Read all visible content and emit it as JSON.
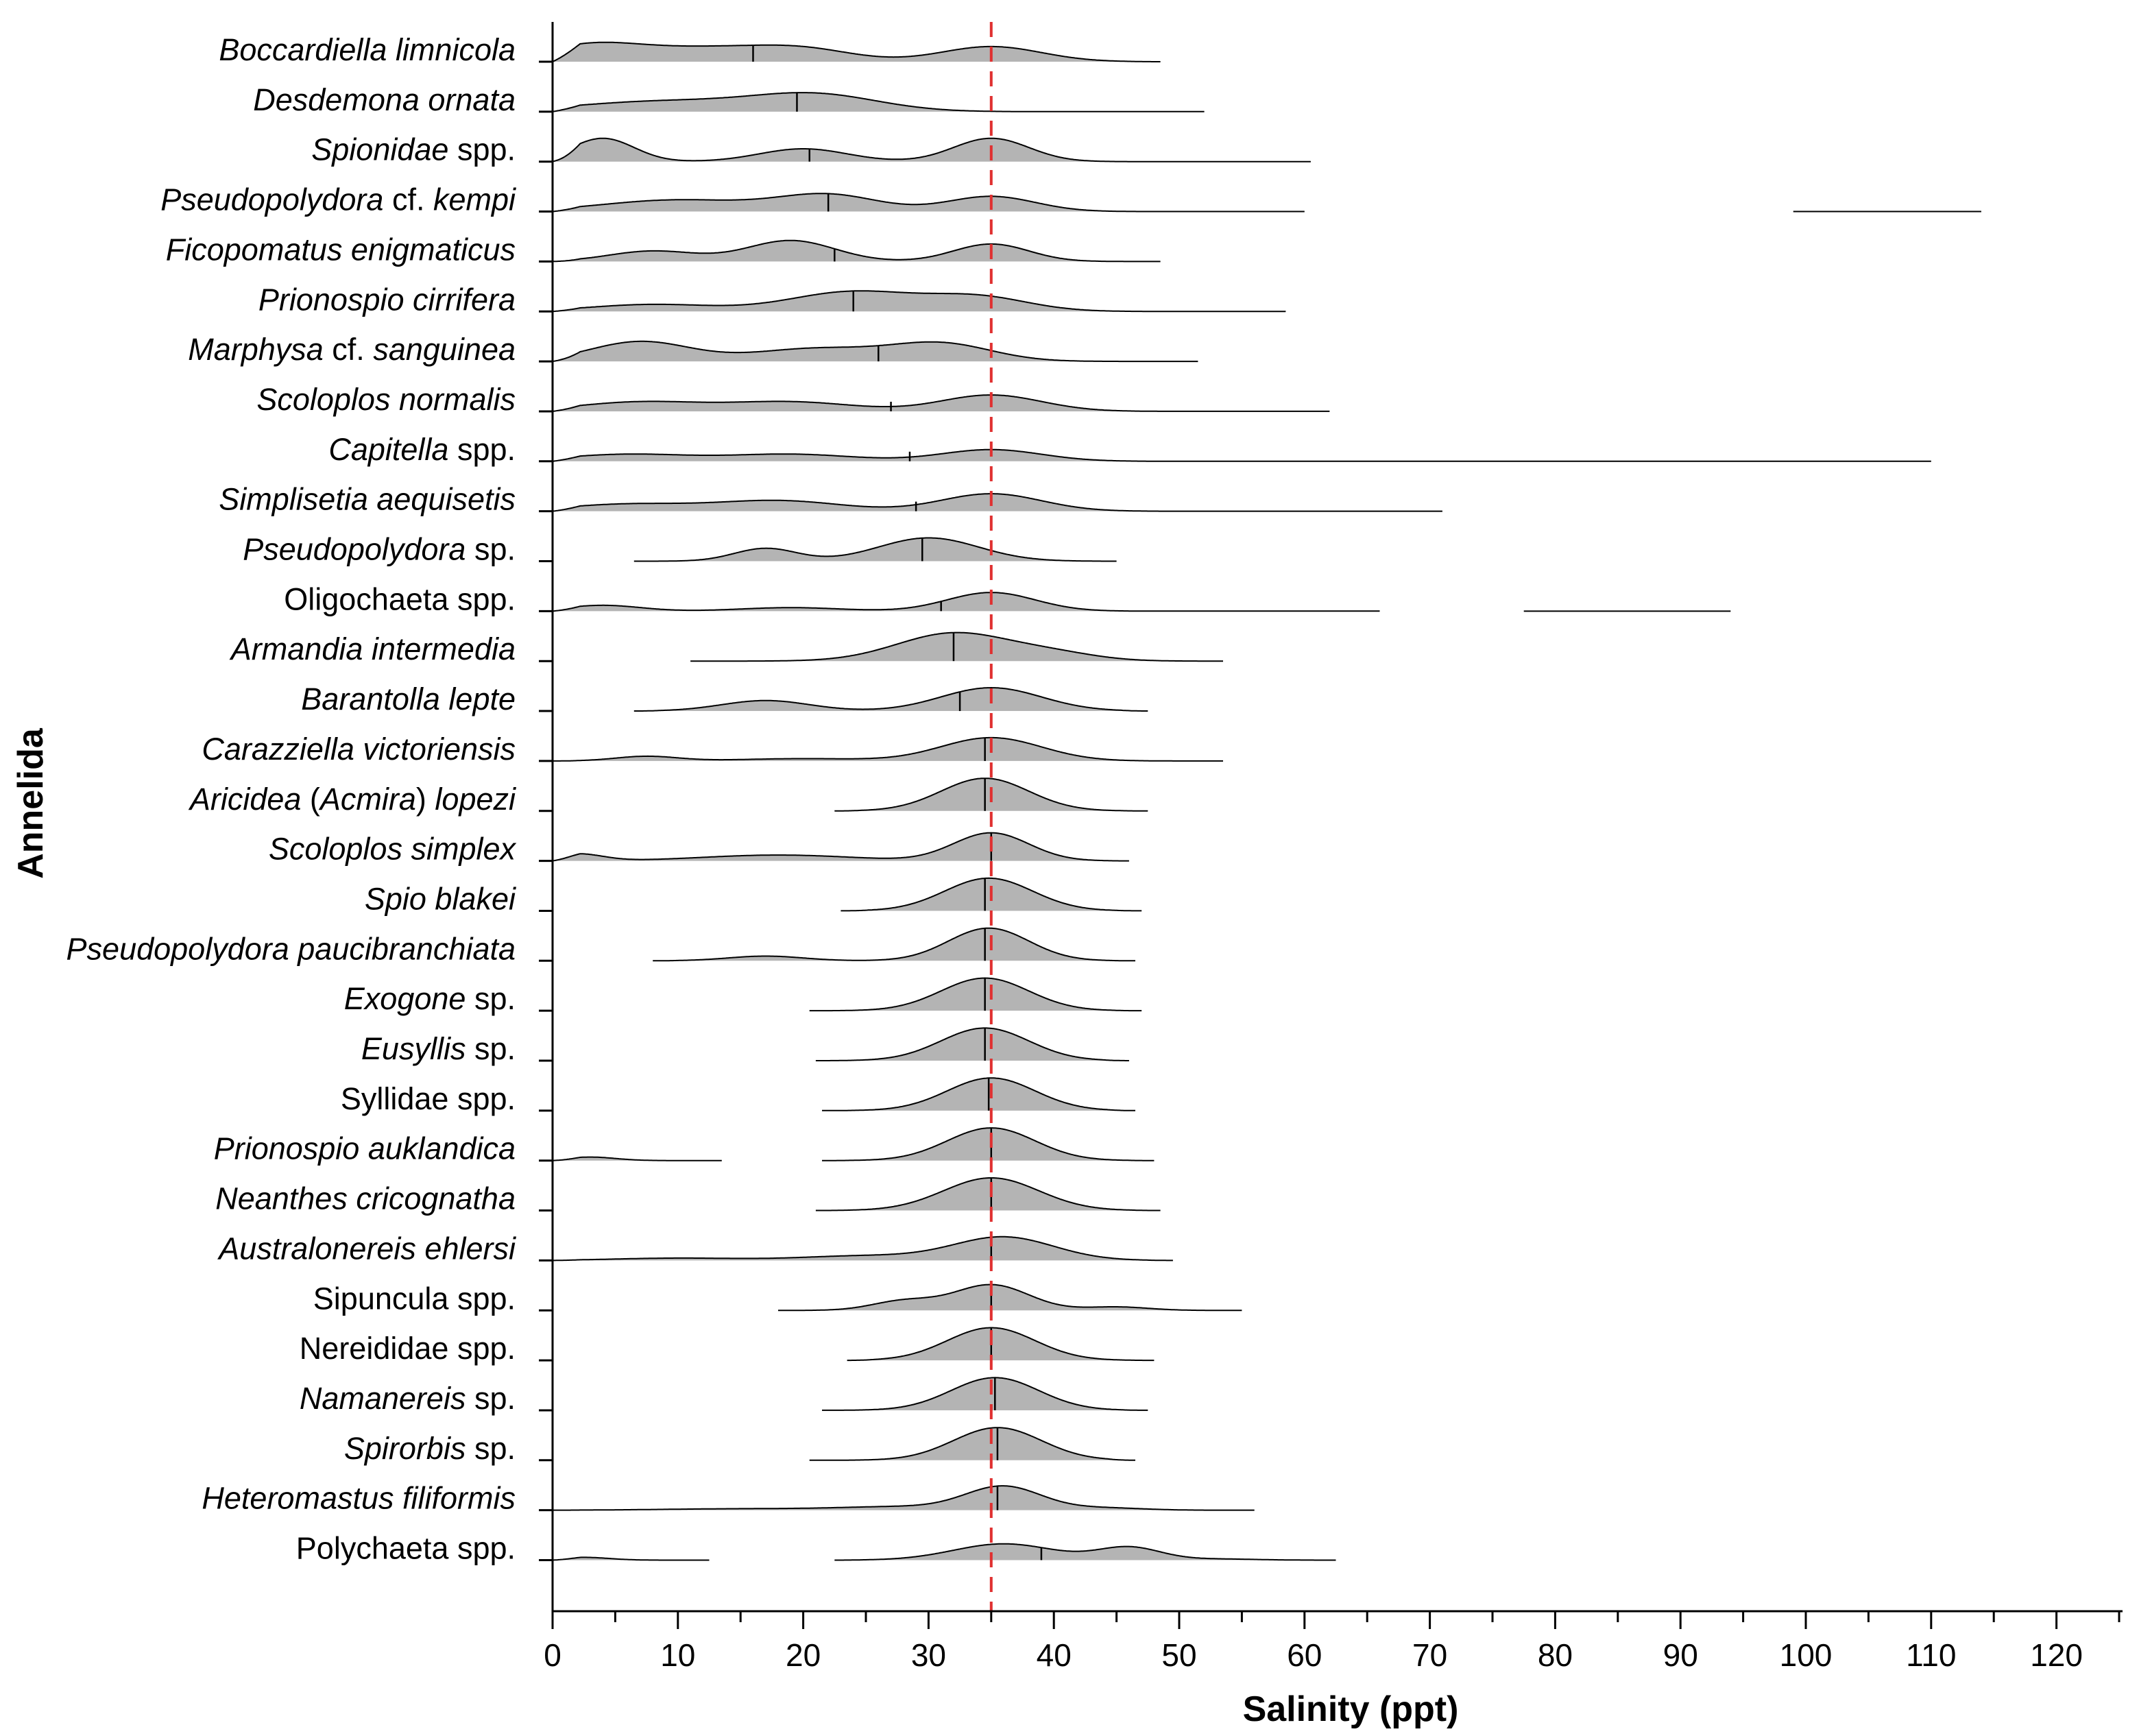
{
  "chart_data": {
    "type": "ridgeline",
    "title": "",
    "xlabel": "Salinity (ppt)",
    "ylabel": "Annelida",
    "xlim": [
      0,
      125
    ],
    "x_ticks": [
      0,
      10,
      20,
      30,
      40,
      50,
      60,
      70,
      80,
      90,
      100,
      110,
      120
    ],
    "x_tick_labels": [
      "0",
      "10",
      "20",
      "30",
      "40",
      "50",
      "60",
      "70",
      "80",
      "90",
      "100",
      "110",
      "120"
    ],
    "reference_line": {
      "x": 35,
      "color": "#e03030",
      "style": "dashed"
    },
    "fill_color": "#b4b4b4",
    "line_color": "#000000",
    "species": [
      {
        "parts": [
          {
            "t": "Boccardiella limnicola",
            "i": true
          }
        ],
        "range": [
          0,
          48.5
        ],
        "median": 16,
        "peaks": [
          [
            3,
            0.7,
            4
          ],
          [
            12,
            0.55,
            5
          ],
          [
            20,
            0.5,
            4
          ],
          [
            35,
            0.65,
            4
          ]
        ]
      },
      {
        "parts": [
          {
            "t": "Desdemona ornata",
            "i": true
          }
        ],
        "range": [
          0,
          52
        ],
        "median": 19.5,
        "peaks": [
          [
            9,
            0.45,
            7
          ],
          [
            21,
            0.7,
            5
          ]
        ]
      },
      {
        "parts": [
          {
            "t": "Spionidae",
            "i": true
          },
          {
            "t": " spp.",
            "i": false
          }
        ],
        "range": [
          0,
          60.5
        ],
        "median": 20.5,
        "peaks": [
          [
            4,
            1.0,
            2.5
          ],
          [
            20,
            0.55,
            3.5
          ],
          [
            35,
            1.0,
            3
          ]
        ]
      },
      {
        "parts": [
          {
            "t": "Pseudopolydora",
            "i": true
          },
          {
            "t": " cf. ",
            "i": false
          },
          {
            "t": "kempi",
            "i": true
          }
        ],
        "range": [
          0,
          60
        ],
        "median": 22,
        "peaks": [
          [
            10,
            0.5,
            6
          ],
          [
            22,
            0.7,
            4
          ],
          [
            35,
            0.65,
            3.5
          ]
        ],
        "extra_segment": [
          99,
          114
        ]
      },
      {
        "parts": [
          {
            "t": "Ficopomatus enigmaticus",
            "i": true
          }
        ],
        "range": [
          0,
          48.5
        ],
        "median": 22.5,
        "peaks": [
          [
            8,
            0.45,
            3.5
          ],
          [
            19,
            0.9,
            3.5
          ],
          [
            35,
            0.75,
            3
          ]
        ]
      },
      {
        "parts": [
          {
            "t": "Prionospio cirrifera",
            "i": true
          }
        ],
        "range": [
          0,
          58.5
        ],
        "median": 24,
        "peaks": [
          [
            8,
            0.3,
            5
          ],
          [
            24,
            0.85,
            5
          ],
          [
            34,
            0.6,
            4
          ]
        ]
      },
      {
        "parts": [
          {
            "t": "Marphysa",
            "i": true
          },
          {
            "t": " cf. ",
            "i": false
          },
          {
            "t": "sanguinea",
            "i": true
          }
        ],
        "range": [
          0,
          51.5
        ],
        "median": 26,
        "peaks": [
          [
            7,
            0.85,
            4
          ],
          [
            21,
            0.55,
            5
          ],
          [
            31,
            0.75,
            4
          ]
        ]
      },
      {
        "parts": [
          {
            "t": "Scoloplos normalis",
            "i": true
          }
        ],
        "range": [
          0,
          62
        ],
        "median": 27,
        "peaks": [
          [
            7,
            0.4,
            5
          ],
          [
            19,
            0.4,
            5
          ],
          [
            35,
            0.7,
            4
          ]
        ]
      },
      {
        "parts": [
          {
            "t": "Capitella",
            "i": true
          },
          {
            "t": " spp.",
            "i": false
          }
        ],
        "range": [
          0,
          110
        ],
        "median": 28.5,
        "peaks": [
          [
            6,
            0.3,
            5
          ],
          [
            19,
            0.3,
            5
          ],
          [
            35,
            0.5,
            4
          ]
        ]
      },
      {
        "parts": [
          {
            "t": "Simplisetia aequisetis",
            "i": true
          }
        ],
        "range": [
          0,
          71
        ],
        "median": 29,
        "peaks": [
          [
            6,
            0.3,
            5
          ],
          [
            18,
            0.45,
            5
          ],
          [
            35,
            0.75,
            4
          ]
        ]
      },
      {
        "parts": [
          {
            "t": "Pseudopolydora",
            "i": true
          },
          {
            "t": " sp.",
            "i": false
          }
        ],
        "range": [
          6.5,
          45
        ],
        "median": 29.5,
        "peaks": [
          [
            17,
            0.55,
            2.5
          ],
          [
            30,
            1.0,
            4
          ]
        ]
      },
      {
        "parts": [
          {
            "t": "Oligochaeta",
            "i": false
          },
          {
            "t": " spp.",
            "i": false
          }
        ],
        "range": [
          0,
          66
        ],
        "median": 31,
        "peaks": [
          [
            4,
            0.25,
            3
          ],
          [
            19,
            0.15,
            4
          ],
          [
            35,
            0.8,
            3.5
          ]
        ],
        "extra_segment": [
          77.5,
          94
        ]
      },
      {
        "parts": [
          {
            "t": "Armandia intermedia",
            "i": true
          }
        ],
        "range": [
          11,
          53.5
        ],
        "median": 32,
        "peaks": [
          [
            32,
            1.2,
            4.5
          ],
          [
            40,
            0.3,
            3.5
          ]
        ]
      },
      {
        "parts": [
          {
            "t": "Barantolla lepte",
            "i": true
          }
        ],
        "range": [
          6.5,
          47.5
        ],
        "median": 32.5,
        "peaks": [
          [
            17,
            0.45,
            3.5
          ],
          [
            35,
            1.0,
            4
          ]
        ]
      },
      {
        "parts": [
          {
            "t": "Carazziella victoriensis",
            "i": true
          }
        ],
        "range": [
          0,
          53.5
        ],
        "median": 34.5,
        "peaks": [
          [
            7.5,
            0.2,
            2.5
          ],
          [
            20,
            0.1,
            5
          ],
          [
            35,
            1.0,
            4
          ]
        ]
      },
      {
        "parts": [
          {
            "t": "Aricidea",
            "i": true
          },
          {
            "t": " (",
            "i": false
          },
          {
            "t": "Acmira",
            "i": true
          },
          {
            "t": ") ",
            "i": false
          },
          {
            "t": "lopezi",
            "i": true
          }
        ],
        "range": [
          22.5,
          47.5
        ],
        "median": 34.5,
        "peaks": [
          [
            34.5,
            1.4,
            3.5
          ]
        ]
      },
      {
        "parts": [
          {
            "t": "Scoloplos simplex",
            "i": true
          }
        ],
        "range": [
          0,
          46
        ],
        "median": 35,
        "peaks": [
          [
            2,
            0.3,
            2
          ],
          [
            18,
            0.25,
            6
          ],
          [
            35,
            1.2,
            3
          ]
        ]
      },
      {
        "parts": [
          {
            "t": "Spio blakei",
            "i": true
          }
        ],
        "range": [
          23,
          47
        ],
        "median": 34.5,
        "peaks": [
          [
            34.8,
            1.4,
            3.5
          ]
        ]
      },
      {
        "parts": [
          {
            "t": "Pseudopolydora paucibranchiata",
            "i": true
          }
        ],
        "range": [
          8,
          46.5
        ],
        "median": 34.5,
        "peaks": [
          [
            17,
            0.2,
            3
          ],
          [
            34.8,
            1.4,
            3.2
          ]
        ]
      },
      {
        "parts": [
          {
            "t": "Exogone",
            "i": true
          },
          {
            "t": " sp.",
            "i": false
          }
        ],
        "range": [
          20.5,
          47
        ],
        "median": 34.5,
        "peaks": [
          [
            34.5,
            1.4,
            3.5
          ]
        ]
      },
      {
        "parts": [
          {
            "t": "Eusyllis",
            "i": true
          },
          {
            "t": " sp.",
            "i": false
          }
        ],
        "range": [
          21,
          46
        ],
        "median": 34.5,
        "peaks": [
          [
            34.5,
            1.4,
            3.5
          ]
        ]
      },
      {
        "parts": [
          {
            "t": "Syllidae",
            "i": false
          },
          {
            "t": " spp.",
            "i": false
          }
        ],
        "range": [
          21.5,
          46.5
        ],
        "median": 34.8,
        "peaks": [
          [
            35,
            1.4,
            3.5
          ]
        ]
      },
      {
        "parts": [
          {
            "t": "Prionospio auklandica",
            "i": true
          }
        ],
        "range": [
          0,
          48
        ],
        "median": 35,
        "peaks": [
          [
            3,
            0.15,
            2
          ],
          [
            35,
            1.4,
            3.5
          ]
        ],
        "gap": [
          13.5,
          21.5
        ]
      },
      {
        "parts": [
          {
            "t": "Neanthes cricognatha",
            "i": true
          }
        ],
        "range": [
          21,
          48.5
        ],
        "median": 35,
        "peaks": [
          [
            35,
            1.4,
            3.8
          ]
        ]
      },
      {
        "parts": [
          {
            "t": "Australonereis ehlersi",
            "i": true
          }
        ],
        "range": [
          0,
          49.5
        ],
        "median": 35,
        "peaks": [
          [
            10,
            0.1,
            5
          ],
          [
            25,
            0.2,
            5
          ],
          [
            36,
            1.0,
            4
          ]
        ]
      },
      {
        "parts": [
          {
            "t": "Sipuncula",
            "i": false
          },
          {
            "t": " spp.",
            "i": false
          }
        ],
        "range": [
          18,
          55
        ],
        "median": 35,
        "peaks": [
          [
            28,
            0.4,
            2.5
          ],
          [
            35,
            1.1,
            3
          ],
          [
            45,
            0.15,
            2.5
          ]
        ]
      },
      {
        "parts": [
          {
            "t": "Nereididae",
            "i": false
          },
          {
            "t": " spp.",
            "i": false
          }
        ],
        "range": [
          23.5,
          48
        ],
        "median": 35,
        "peaks": [
          [
            35,
            1.4,
            3.5
          ]
        ]
      },
      {
        "parts": [
          {
            "t": "Namanereis",
            "i": true
          },
          {
            "t": " sp.",
            "i": false
          }
        ],
        "range": [
          21.5,
          47.5
        ],
        "median": 35.3,
        "peaks": [
          [
            35.3,
            1.4,
            3.5
          ]
        ]
      },
      {
        "parts": [
          {
            "t": "Spirorbis",
            "i": true
          },
          {
            "t": " sp.",
            "i": false
          }
        ],
        "range": [
          20.5,
          46.5
        ],
        "median": 35.5,
        "peaks": [
          [
            35.5,
            1.4,
            3.5
          ]
        ]
      },
      {
        "parts": [
          {
            "t": "Heteromastus filiformis",
            "i": true
          }
        ],
        "range": [
          0,
          56
        ],
        "median": 35.5,
        "peaks": [
          [
            15,
            0.06,
            6
          ],
          [
            28,
            0.15,
            5
          ],
          [
            36,
            1.0,
            3
          ],
          [
            44,
            0.1,
            3
          ]
        ]
      },
      {
        "parts": [
          {
            "t": "Polychaeta",
            "i": false
          },
          {
            "t": " spp.",
            "i": false
          }
        ],
        "range": [
          0,
          62.5
        ],
        "median": 39,
        "peaks": [
          [
            2.5,
            0.12,
            2
          ],
          [
            36,
            0.7,
            4
          ],
          [
            46,
            0.55,
            2.5
          ],
          [
            53,
            0.05,
            3
          ]
        ],
        "gap": [
          12.5,
          22.5
        ]
      }
    ]
  }
}
